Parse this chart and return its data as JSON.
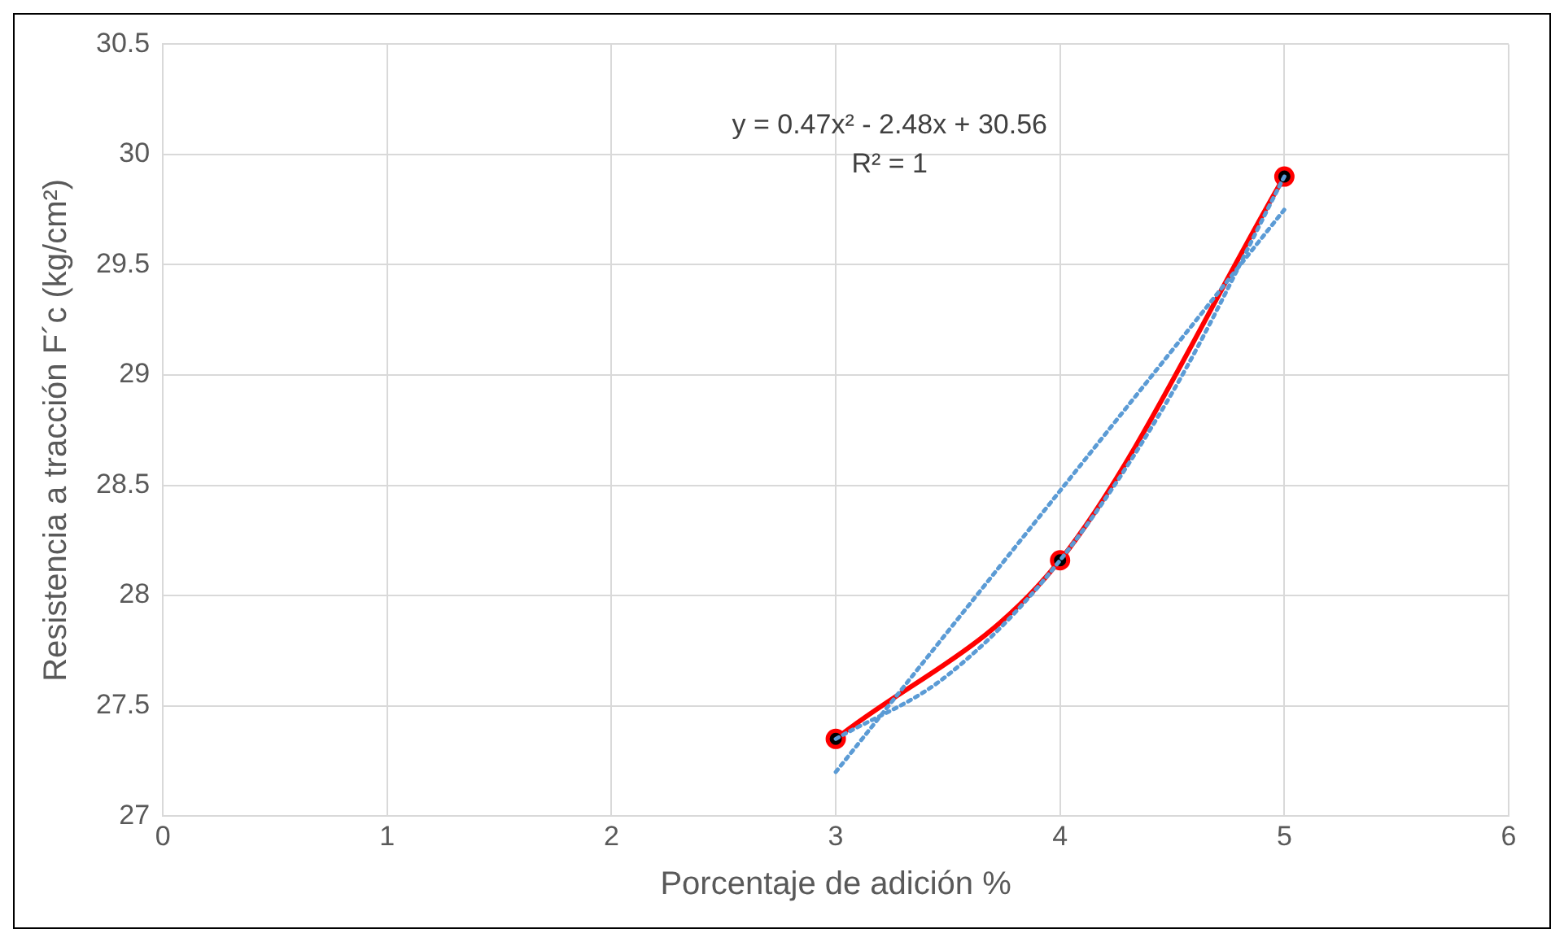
{
  "chart_data": {
    "type": "line",
    "xlabel": "Porcentaje de adición %",
    "ylabel": "Resistencia a tracción F´c (kg/cm²)",
    "xlim": [
      0,
      6
    ],
    "xticks": [
      0,
      1,
      2,
      3,
      4,
      5,
      6
    ],
    "ylim": [
      27,
      30.5
    ],
    "yticks": [
      27,
      27.5,
      28,
      28.5,
      29,
      29.5,
      30,
      30.5
    ],
    "grid": true,
    "annotations": [
      "y = 0.47x² - 2.48x + 30.56",
      "R² = 1"
    ],
    "series": [
      {
        "type": "line",
        "color": "#5b9bd5",
        "line_style": "dotted",
        "marker": "none",
        "x": [
          3,
          5
        ],
        "values": [
          27.2,
          29.75
        ]
      },
      {
        "type": "line",
        "color": "#5b9bd5",
        "line_style": "dotted",
        "marker": "none",
        "x": [
          3,
          3.5,
          4,
          4.5,
          5
        ],
        "values": [
          27.35,
          27.64,
          28.16,
          28.92,
          29.9
        ]
      },
      {
        "type": "line",
        "color": "#ff0000",
        "line_style": "solid",
        "marker": "circle",
        "x": [
          3,
          4,
          5
        ],
        "values": [
          27.35,
          28.16,
          29.9
        ]
      }
    ]
  }
}
